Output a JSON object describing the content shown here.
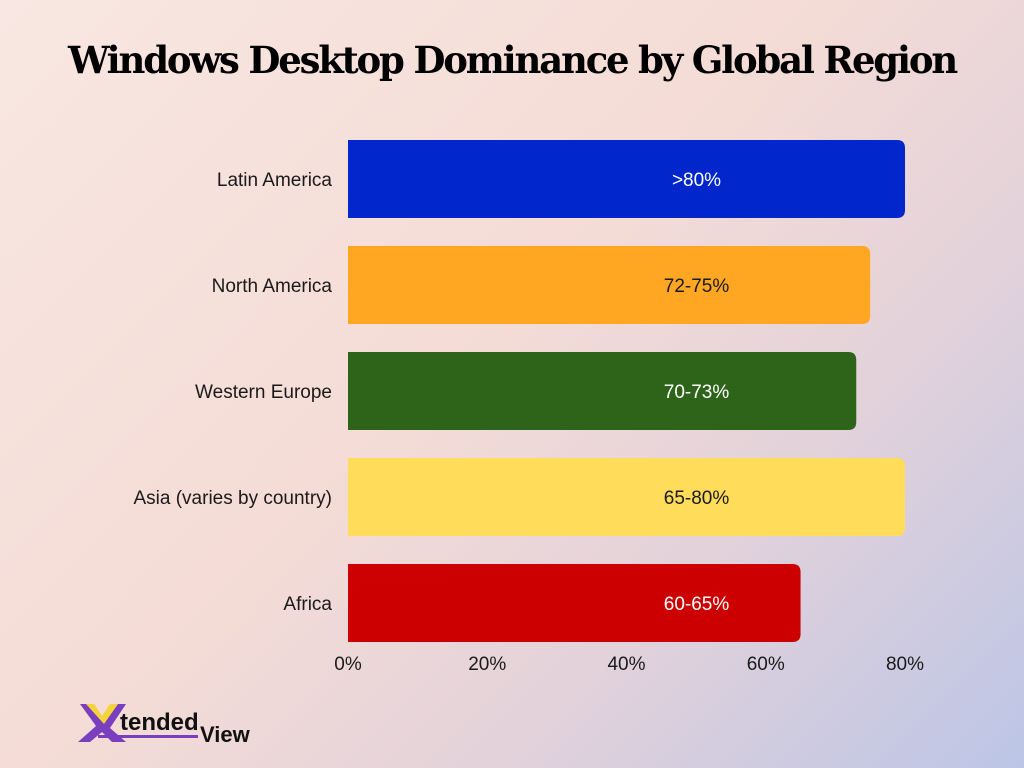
{
  "chart_data": {
    "type": "bar",
    "orientation": "horizontal",
    "title": "Windows Desktop Dominance by Global Region",
    "categories": [
      "Latin America",
      "North America",
      "Western Europe",
      "Asia (varies by country)",
      "Africa"
    ],
    "values": [
      80,
      75,
      73,
      80,
      65
    ],
    "data_labels": [
      ">80%",
      "72-75%",
      "70-73%",
      "65-80%",
      "60-65%"
    ],
    "colors": [
      "#0026cc",
      "#ffa623",
      "#2e6419",
      "#ffdc5a",
      "#cc0000"
    ],
    "label_colors": [
      "#ffffff",
      "#1a1a1a",
      "#ffffff",
      "#1a1a1a",
      "#ffffff"
    ],
    "xlim": [
      0,
      80
    ],
    "xticks": [
      "0%",
      "20%",
      "40%",
      "60%",
      "80%"
    ],
    "xtick_values": [
      0,
      20,
      40,
      60,
      80
    ],
    "grid": false,
    "xlabel": "",
    "ylabel": ""
  },
  "logo": {
    "text_x": "X",
    "text_rest": "tended",
    "text_view": "View"
  }
}
